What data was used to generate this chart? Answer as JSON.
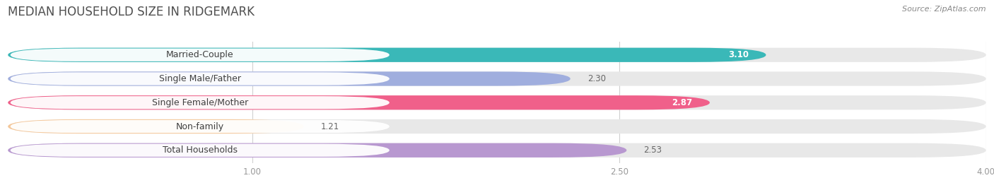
{
  "title": "MEDIAN HOUSEHOLD SIZE IN RIDGEMARK",
  "source": "Source: ZipAtlas.com",
  "categories": [
    "Married-Couple",
    "Single Male/Father",
    "Single Female/Mother",
    "Non-family",
    "Total Households"
  ],
  "values": [
    3.1,
    2.3,
    2.87,
    1.21,
    2.53
  ],
  "bar_colors": [
    "#3ab8b8",
    "#a0aede",
    "#f0608a",
    "#f5c89a",
    "#b898d0"
  ],
  "track_color": "#e8e8e8",
  "xlim_min": 0.0,
  "xlim_max": 4.0,
  "xticks": [
    1.0,
    2.5,
    4.0
  ],
  "xtick_labels": [
    "1.00",
    "2.50",
    "4.00"
  ],
  "background_color": "#ffffff",
  "title_fontsize": 12,
  "label_fontsize": 9,
  "value_fontsize": 8.5,
  "bar_height": 0.6,
  "value_inside": [
    0,
    2
  ],
  "value_inside_color": "#ffffff",
  "value_outside_color": "#666666"
}
